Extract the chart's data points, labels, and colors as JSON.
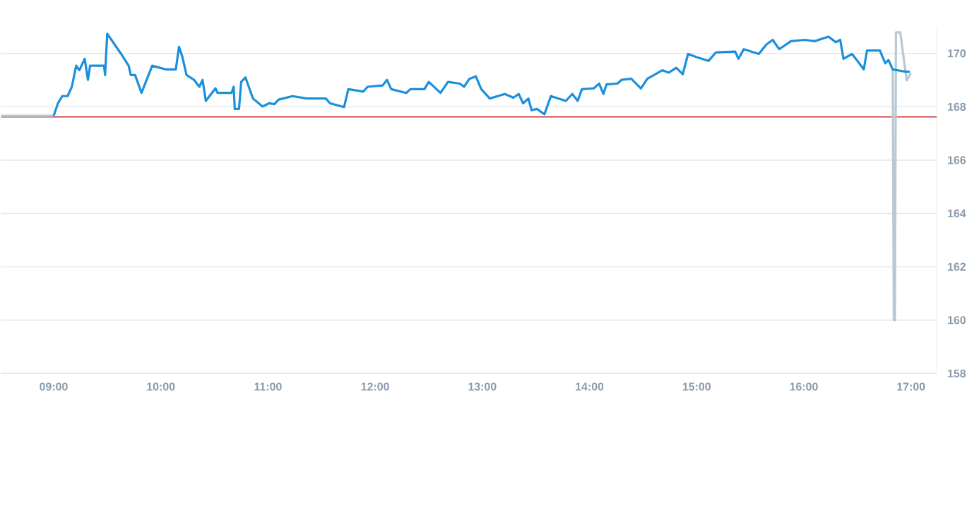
{
  "chart_data": {
    "type": "line",
    "series": [
      {
        "color": "#1a90dc",
        "x": [
          9.0,
          9.04,
          9.08,
          9.13,
          9.17,
          9.21,
          9.24,
          9.29,
          9.32,
          9.34,
          9.47,
          9.48,
          9.5,
          9.57,
          9.63,
          9.7,
          9.72,
          9.76,
          9.82,
          9.92,
          10.05,
          10.14,
          10.17,
          10.2,
          10.24,
          10.31,
          10.36,
          10.39,
          10.42,
          10.51,
          10.53,
          10.66,
          10.68,
          10.69,
          10.73,
          10.75,
          10.79,
          10.86,
          10.95,
          11.01,
          11.06,
          11.1,
          11.23,
          11.36,
          11.54,
          11.58,
          11.71,
          11.75,
          11.89,
          11.93,
          12.07,
          12.11,
          12.15,
          12.29,
          12.33,
          12.46,
          12.5,
          12.61,
          12.68,
          12.79,
          12.83,
          12.88,
          12.94,
          12.99,
          13.07,
          13.21,
          13.29,
          13.34,
          13.38,
          13.43,
          13.46,
          13.51,
          13.58,
          13.64,
          13.78,
          13.84,
          13.89,
          13.93,
          14.04,
          14.09,
          14.13,
          14.16,
          14.26,
          14.3,
          14.39,
          14.48,
          14.54,
          14.68,
          14.74,
          14.81,
          14.87,
          14.92,
          15.0,
          15.11,
          15.18,
          15.36,
          15.39,
          15.44,
          15.58,
          15.65,
          15.71,
          15.77,
          15.88,
          16.01,
          16.1,
          16.23,
          16.3,
          16.34,
          16.37,
          16.45,
          16.5,
          16.56,
          16.59,
          16.71,
          16.76,
          16.79,
          16.83,
          16.93,
          16.99
        ],
        "values": [
          167.66,
          168.13,
          168.4,
          168.4,
          168.75,
          169.54,
          169.37,
          169.8,
          169.01,
          169.54,
          169.54,
          169.19,
          170.74,
          170.33,
          169.98,
          169.54,
          169.19,
          169.19,
          168.52,
          169.54,
          169.4,
          169.4,
          170.25,
          169.89,
          169.19,
          169.01,
          168.75,
          169.01,
          168.22,
          168.69,
          168.52,
          168.52,
          168.75,
          167.92,
          167.92,
          168.93,
          169.1,
          168.31,
          168.01,
          168.13,
          168.1,
          168.27,
          168.4,
          168.31,
          168.31,
          168.13,
          167.99,
          168.66,
          168.57,
          168.75,
          168.8,
          169.01,
          168.66,
          168.52,
          168.66,
          168.66,
          168.93,
          168.52,
          168.93,
          168.87,
          168.75,
          169.05,
          169.14,
          168.66,
          168.31,
          168.48,
          168.34,
          168.48,
          168.13,
          168.31,
          167.87,
          167.92,
          167.72,
          168.4,
          168.22,
          168.48,
          168.22,
          168.66,
          168.69,
          168.87,
          168.48,
          168.84,
          168.87,
          169.01,
          169.05,
          168.69,
          169.05,
          169.37,
          169.28,
          169.46,
          169.22,
          169.98,
          169.86,
          169.72,
          170.04,
          170.07,
          169.8,
          170.16,
          169.98,
          170.33,
          170.51,
          170.16,
          170.46,
          170.51,
          170.46,
          170.63,
          170.42,
          170.51,
          169.8,
          169.98,
          169.72,
          169.4,
          170.11,
          170.11,
          169.63,
          169.75,
          169.4,
          169.33,
          169.31
        ]
      },
      {
        "color": "#b8c8d4",
        "x": [
          8.51,
          9.0,
          12.0,
          16.83,
          16.84,
          16.85,
          16.86,
          16.9,
          16.96,
          17.0
        ],
        "values": [
          167.66,
          167.66,
          null,
          169.4,
          160.0,
          160.0,
          170.79,
          170.79,
          168.99,
          169.26
        ]
      }
    ],
    "xlim": [
      8.51,
      17.24
    ],
    "ylim": [
      158,
      171
    ],
    "xticks": [
      {
        "value": 9,
        "label": "09:00"
      },
      {
        "value": 10,
        "label": "10:00"
      },
      {
        "value": 11,
        "label": "11:00"
      },
      {
        "value": 12,
        "label": "12:00"
      },
      {
        "value": 13,
        "label": "13:00"
      },
      {
        "value": 14,
        "label": "14:00"
      },
      {
        "value": 15,
        "label": "15:00"
      },
      {
        "value": 16,
        "label": "16:00"
      },
      {
        "value": 17,
        "label": "17:00"
      }
    ],
    "yticks": [
      158,
      160,
      162,
      164,
      166,
      168,
      170
    ],
    "ref_lines": [
      {
        "axis": "y",
        "value": 167.62,
        "color": "#cc2b2b"
      }
    ],
    "grid": "y",
    "marker": "none",
    "line_style": "solid"
  }
}
